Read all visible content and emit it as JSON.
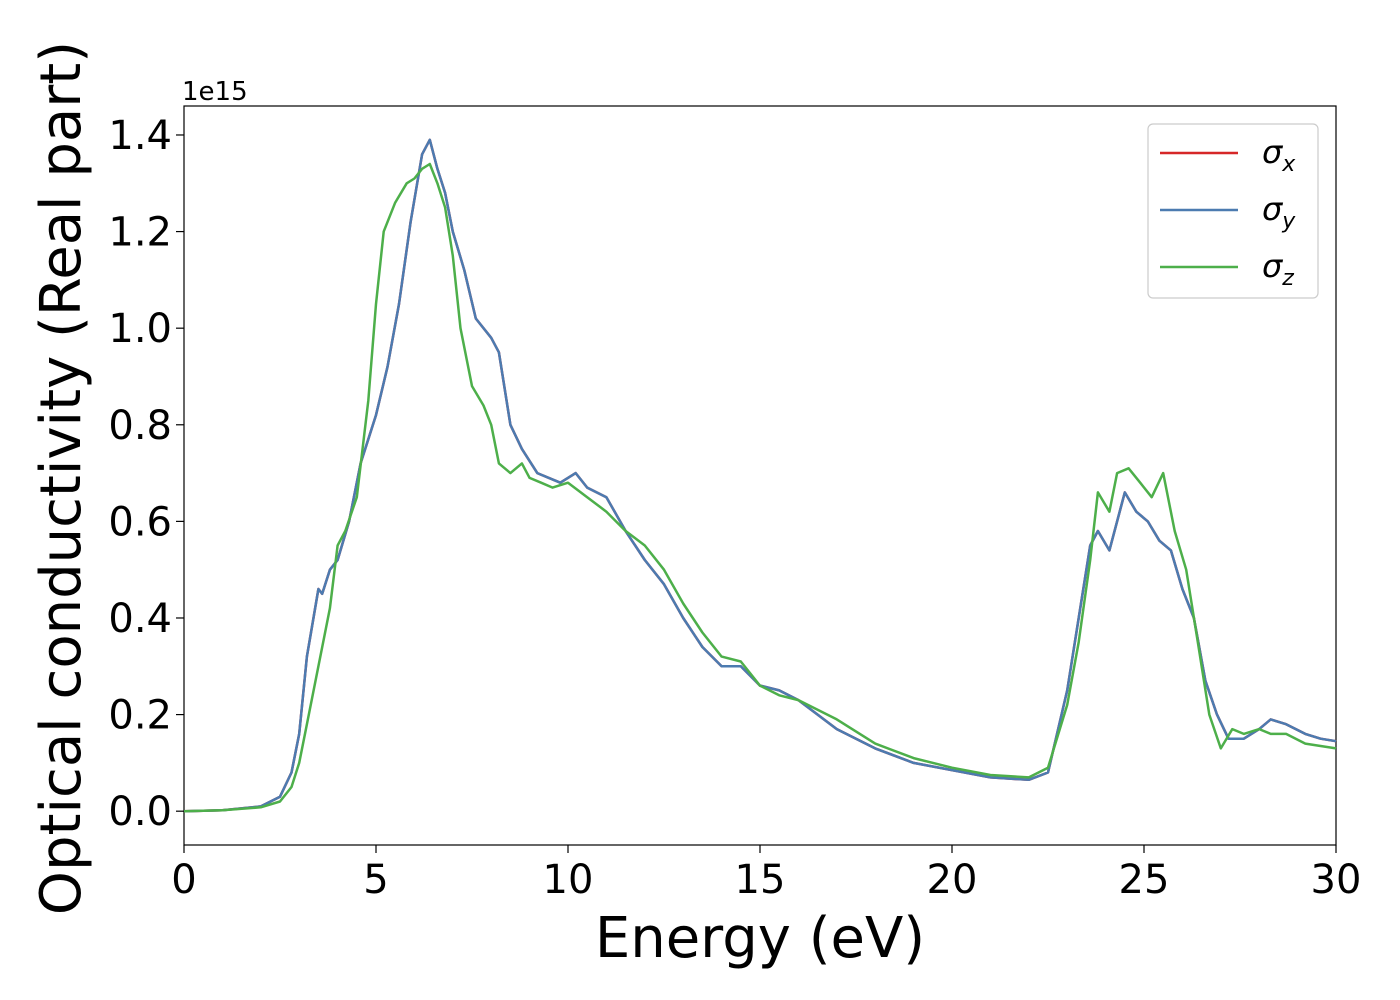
{
  "chart_data": {
    "type": "line",
    "title": "",
    "xlabel": "Energy (eV)",
    "ylabel": "Optical conductivity (Real part)",
    "y_offset_text": "1e15",
    "xlim": [
      0,
      30
    ],
    "ylim": [
      -0.07,
      1.46
    ],
    "xticks": [
      0,
      5,
      10,
      15,
      20,
      25,
      30
    ],
    "xtick_labels": [
      "0",
      "5",
      "10",
      "15",
      "20",
      "25",
      "30"
    ],
    "yticks": [
      0.0,
      0.2,
      0.4,
      0.6,
      0.8,
      1.0,
      1.2,
      1.4
    ],
    "ytick_labels": [
      "0.0",
      "0.2",
      "0.4",
      "0.6",
      "0.8",
      "1.0",
      "1.2",
      "1.4"
    ],
    "grid": false,
    "legend_position": "top-right",
    "series": [
      {
        "name": "σx",
        "symbol": "σ",
        "subscript": "x",
        "color": "#d62728",
        "x": [
          0,
          1,
          2,
          2.5,
          2.8,
          3.0,
          3.2,
          3.5,
          3.6,
          3.8,
          4.0,
          4.3,
          4.6,
          5.0,
          5.3,
          5.6,
          5.9,
          6.2,
          6.4,
          6.6,
          6.8,
          7.0,
          7.3,
          7.6,
          8.0,
          8.2,
          8.5,
          8.8,
          9.2,
          9.8,
          10.2,
          10.5,
          11.0,
          11.5,
          12.0,
          12.5,
          13.0,
          13.5,
          14.0,
          14.5,
          15.0,
          15.5,
          16.0,
          17.0,
          18.0,
          19.0,
          20.0,
          21.0,
          22.0,
          22.5,
          23.0,
          23.3,
          23.6,
          23.8,
          24.1,
          24.3,
          24.5,
          24.8,
          25.1,
          25.4,
          25.7,
          26.0,
          26.3,
          26.6,
          26.9,
          27.2,
          27.6,
          28.0,
          28.3,
          28.7,
          29.2,
          29.6,
          30.0
        ],
        "y": [
          0,
          0.002,
          0.01,
          0.03,
          0.08,
          0.16,
          0.32,
          0.46,
          0.45,
          0.5,
          0.52,
          0.6,
          0.72,
          0.82,
          0.92,
          1.05,
          1.22,
          1.36,
          1.39,
          1.33,
          1.28,
          1.2,
          1.12,
          1.02,
          0.98,
          0.95,
          0.8,
          0.75,
          0.7,
          0.68,
          0.7,
          0.67,
          0.65,
          0.58,
          0.52,
          0.47,
          0.4,
          0.34,
          0.3,
          0.3,
          0.26,
          0.25,
          0.23,
          0.17,
          0.13,
          0.1,
          0.085,
          0.07,
          0.065,
          0.08,
          0.25,
          0.4,
          0.55,
          0.58,
          0.54,
          0.6,
          0.66,
          0.62,
          0.6,
          0.56,
          0.54,
          0.46,
          0.4,
          0.27,
          0.2,
          0.15,
          0.15,
          0.17,
          0.19,
          0.18,
          0.16,
          0.15,
          0.145
        ]
      },
      {
        "name": "σy",
        "symbol": "σ",
        "subscript": "y",
        "color": "#4c7bb0",
        "x": [
          0,
          1,
          2,
          2.5,
          2.8,
          3.0,
          3.2,
          3.5,
          3.6,
          3.8,
          4.0,
          4.3,
          4.6,
          5.0,
          5.3,
          5.6,
          5.9,
          6.2,
          6.4,
          6.6,
          6.8,
          7.0,
          7.3,
          7.6,
          8.0,
          8.2,
          8.5,
          8.8,
          9.2,
          9.8,
          10.2,
          10.5,
          11.0,
          11.5,
          12.0,
          12.5,
          13.0,
          13.5,
          14.0,
          14.5,
          15.0,
          15.5,
          16.0,
          17.0,
          18.0,
          19.0,
          20.0,
          21.0,
          22.0,
          22.5,
          23.0,
          23.3,
          23.6,
          23.8,
          24.1,
          24.3,
          24.5,
          24.8,
          25.1,
          25.4,
          25.7,
          26.0,
          26.3,
          26.6,
          26.9,
          27.2,
          27.6,
          28.0,
          28.3,
          28.7,
          29.2,
          29.6,
          30.0
        ],
        "y": [
          0,
          0.002,
          0.01,
          0.03,
          0.08,
          0.16,
          0.32,
          0.46,
          0.45,
          0.5,
          0.52,
          0.6,
          0.72,
          0.82,
          0.92,
          1.05,
          1.22,
          1.36,
          1.39,
          1.33,
          1.28,
          1.2,
          1.12,
          1.02,
          0.98,
          0.95,
          0.8,
          0.75,
          0.7,
          0.68,
          0.7,
          0.67,
          0.65,
          0.58,
          0.52,
          0.47,
          0.4,
          0.34,
          0.3,
          0.3,
          0.26,
          0.25,
          0.23,
          0.17,
          0.13,
          0.1,
          0.085,
          0.07,
          0.065,
          0.08,
          0.25,
          0.4,
          0.55,
          0.58,
          0.54,
          0.6,
          0.66,
          0.62,
          0.6,
          0.56,
          0.54,
          0.46,
          0.4,
          0.27,
          0.2,
          0.15,
          0.15,
          0.17,
          0.19,
          0.18,
          0.16,
          0.15,
          0.145
        ]
      },
      {
        "name": "σz",
        "symbol": "σ",
        "subscript": "z",
        "color": "#4daf4a",
        "x": [
          0,
          1,
          2,
          2.5,
          2.8,
          3.0,
          3.2,
          3.5,
          3.8,
          4.0,
          4.2,
          4.5,
          4.8,
          5.0,
          5.2,
          5.5,
          5.8,
          6.0,
          6.2,
          6.4,
          6.6,
          6.8,
          7.0,
          7.2,
          7.5,
          7.8,
          8.0,
          8.2,
          8.5,
          8.8,
          9.0,
          9.3,
          9.6,
          10.0,
          10.5,
          11.0,
          11.5,
          12.0,
          12.5,
          13.0,
          13.5,
          14.0,
          14.5,
          15.0,
          15.5,
          16.0,
          17.0,
          18.0,
          19.0,
          20.0,
          21.0,
          22.0,
          22.5,
          23.0,
          23.3,
          23.6,
          23.8,
          24.1,
          24.3,
          24.6,
          24.9,
          25.2,
          25.5,
          25.8,
          26.1,
          26.4,
          26.7,
          27.0,
          27.3,
          27.6,
          28.0,
          28.3,
          28.7,
          29.2,
          29.6,
          30.0
        ],
        "y": [
          0,
          0.002,
          0.008,
          0.02,
          0.05,
          0.1,
          0.18,
          0.3,
          0.42,
          0.55,
          0.58,
          0.65,
          0.85,
          1.05,
          1.2,
          1.26,
          1.3,
          1.31,
          1.33,
          1.34,
          1.3,
          1.25,
          1.15,
          1.0,
          0.88,
          0.84,
          0.8,
          0.72,
          0.7,
          0.72,
          0.69,
          0.68,
          0.67,
          0.68,
          0.65,
          0.62,
          0.58,
          0.55,
          0.5,
          0.43,
          0.37,
          0.32,
          0.31,
          0.26,
          0.24,
          0.23,
          0.19,
          0.14,
          0.11,
          0.09,
          0.075,
          0.07,
          0.09,
          0.22,
          0.35,
          0.52,
          0.66,
          0.62,
          0.7,
          0.71,
          0.68,
          0.65,
          0.7,
          0.58,
          0.5,
          0.35,
          0.2,
          0.13,
          0.17,
          0.16,
          0.17,
          0.16,
          0.16,
          0.14,
          0.135,
          0.13
        ]
      }
    ]
  }
}
